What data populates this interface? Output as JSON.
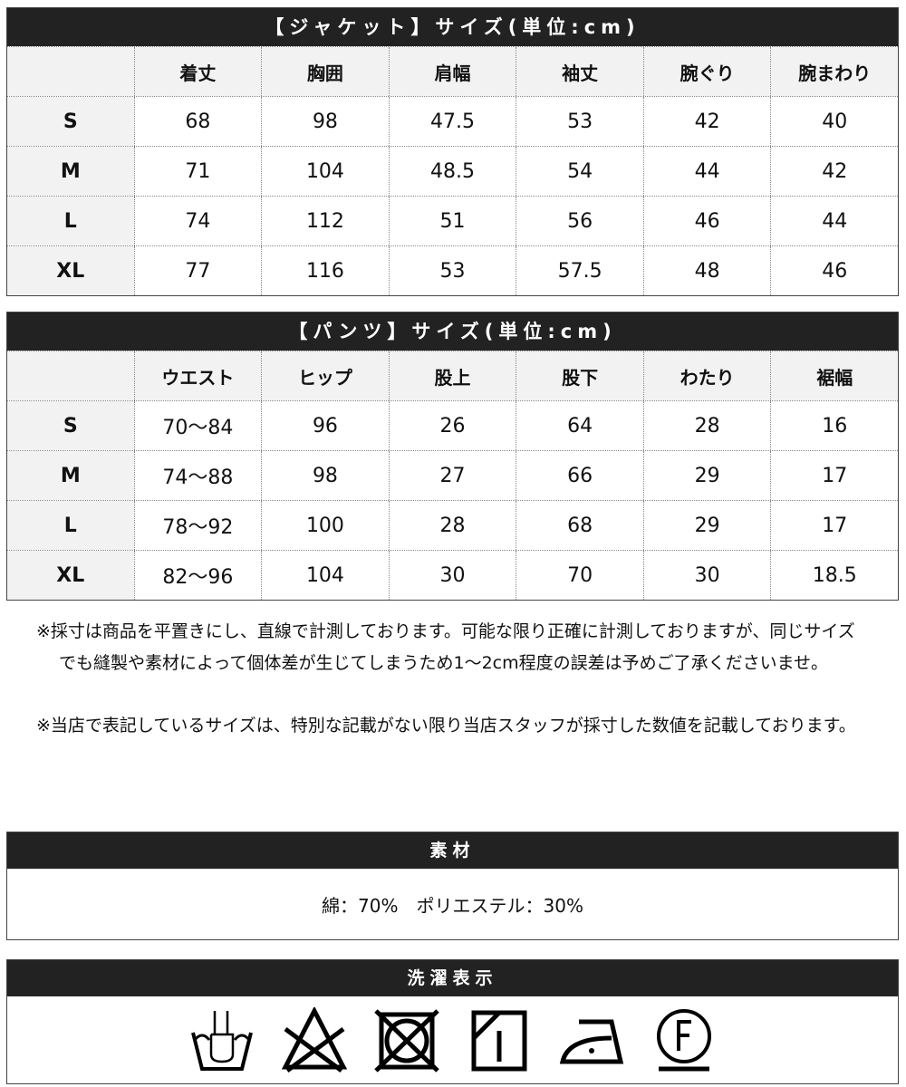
{
  "jacket": {
    "title": "【ジャケット】サイズ(単位:cm)",
    "headers": [
      "",
      "着丈",
      "胸囲",
      "肩幅",
      "袖丈",
      "腕ぐり",
      "腕まわり"
    ],
    "rows": [
      [
        "S",
        "68",
        "98",
        "47.5",
        "53",
        "42",
        "40"
      ],
      [
        "M",
        "71",
        "104",
        "48.5",
        "54",
        "44",
        "42"
      ],
      [
        "L",
        "74",
        "112",
        "51",
        "56",
        "46",
        "44"
      ],
      [
        "XL",
        "77",
        "116",
        "53",
        "57.5",
        "48",
        "46"
      ]
    ]
  },
  "pants": {
    "title": "【パンツ】サイズ(単位:cm)",
    "headers": [
      "",
      "ウエスト",
      "ヒップ",
      "股上",
      "股下",
      "わたり",
      "裾幅"
    ],
    "rows": [
      [
        "S",
        "70〜84",
        "96",
        "26",
        "64",
        "28",
        "16"
      ],
      [
        "M",
        "74〜88",
        "98",
        "27",
        "66",
        "29",
        "17"
      ],
      [
        "L",
        "78〜92",
        "100",
        "28",
        "68",
        "29",
        "17"
      ],
      [
        "XL",
        "82〜96",
        "104",
        "30",
        "70",
        "30",
        "18.5"
      ]
    ]
  },
  "notes": [
    "※採寸は商品を平置きにし、直線で計測しております。可能な限り正確に計測しておりますが、同じサイズでも縫製や素材によって個体差が生じてしまうため1〜2cm程度の誤差は予めご了承くださいませ。",
    "※当店で表記しているサイズは、特別な記載がない限り当店スタッフが採寸した数値を記載しております。"
  ],
  "material": {
    "title": "素材",
    "text": "綿：70%　ポリエステル：30%"
  },
  "care": {
    "title": "洗濯表示",
    "icons": [
      "hand-wash-icon",
      "no-bleach-icon",
      "no-tumble-dry-icon",
      "line-dry-shade-icon",
      "iron-low-icon",
      "dry-clean-f-icon"
    ]
  }
}
